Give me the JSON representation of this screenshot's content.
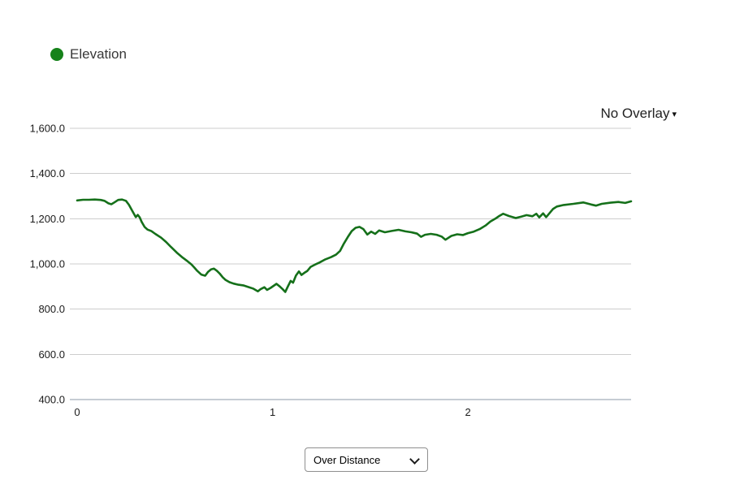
{
  "legend": {
    "label": "Elevation",
    "marker_color": "#16821a"
  },
  "overlay_dropdown": {
    "label": "No Overlay",
    "caret": "▾"
  },
  "bottom_select": {
    "options": [
      "Over Distance"
    ],
    "selected": "Over Distance"
  },
  "chart_data": {
    "type": "line",
    "title": "",
    "xlabel": "",
    "ylabel": "",
    "grid": true,
    "legend_position": "top-left",
    "xlim": [
      0,
      2.835
    ],
    "ylim": [
      400,
      1600
    ],
    "line_color": "#15701a",
    "grid_color": "#cdcdcd",
    "axis_color": "#8e99a8",
    "tick_color": "#1b1b1b",
    "yticks": [
      {
        "value": 1600,
        "label": "1,600.0"
      },
      {
        "value": 1400,
        "label": "1,400.0"
      },
      {
        "value": 1200,
        "label": "1,200.0"
      },
      {
        "value": 1000,
        "label": "1,000.0"
      },
      {
        "value": 800,
        "label": "800.0"
      },
      {
        "value": 600,
        "label": "600.0"
      },
      {
        "value": 400,
        "label": "400.0"
      }
    ],
    "xticks": [
      {
        "value": 0,
        "label": "0"
      },
      {
        "value": 1,
        "label": "1"
      },
      {
        "value": 2,
        "label": "2"
      }
    ],
    "series": [
      {
        "name": "Elevation",
        "points": [
          [
            0.0,
            1281
          ],
          [
            0.03,
            1284
          ],
          [
            0.06,
            1284
          ],
          [
            0.09,
            1285
          ],
          [
            0.12,
            1283
          ],
          [
            0.14,
            1279
          ],
          [
            0.16,
            1268
          ],
          [
            0.175,
            1264
          ],
          [
            0.19,
            1272
          ],
          [
            0.21,
            1283
          ],
          [
            0.23,
            1285
          ],
          [
            0.25,
            1279
          ],
          [
            0.265,
            1262
          ],
          [
            0.285,
            1230
          ],
          [
            0.3,
            1207
          ],
          [
            0.31,
            1217
          ],
          [
            0.32,
            1206
          ],
          [
            0.33,
            1186
          ],
          [
            0.345,
            1164
          ],
          [
            0.36,
            1152
          ],
          [
            0.38,
            1145
          ],
          [
            0.4,
            1133
          ],
          [
            0.43,
            1116
          ],
          [
            0.455,
            1097
          ],
          [
            0.48,
            1075
          ],
          [
            0.51,
            1050
          ],
          [
            0.54,
            1028
          ],
          [
            0.565,
            1012
          ],
          [
            0.585,
            998
          ],
          [
            0.6,
            984
          ],
          [
            0.615,
            969
          ],
          [
            0.635,
            953
          ],
          [
            0.655,
            948
          ],
          [
            0.67,
            965
          ],
          [
            0.685,
            976
          ],
          [
            0.7,
            979
          ],
          [
            0.715,
            970
          ],
          [
            0.73,
            957
          ],
          [
            0.745,
            941
          ],
          [
            0.76,
            929
          ],
          [
            0.78,
            919
          ],
          [
            0.8,
            913
          ],
          [
            0.825,
            908
          ],
          [
            0.85,
            905
          ],
          [
            0.88,
            897
          ],
          [
            0.9,
            891
          ],
          [
            0.925,
            879
          ],
          [
            0.94,
            889
          ],
          [
            0.958,
            897
          ],
          [
            0.972,
            885
          ],
          [
            0.99,
            894
          ],
          [
            1.005,
            903
          ],
          [
            1.02,
            912
          ],
          [
            1.037,
            900
          ],
          [
            1.052,
            888
          ],
          [
            1.065,
            876
          ],
          [
            1.08,
            903
          ],
          [
            1.093,
            925
          ],
          [
            1.105,
            917
          ],
          [
            1.12,
            949
          ],
          [
            1.135,
            967
          ],
          [
            1.148,
            951
          ],
          [
            1.163,
            961
          ],
          [
            1.178,
            969
          ],
          [
            1.195,
            987
          ],
          [
            1.215,
            996
          ],
          [
            1.24,
            1006
          ],
          [
            1.27,
            1020
          ],
          [
            1.3,
            1030
          ],
          [
            1.325,
            1041
          ],
          [
            1.345,
            1057
          ],
          [
            1.365,
            1090
          ],
          [
            1.385,
            1119
          ],
          [
            1.405,
            1145
          ],
          [
            1.425,
            1160
          ],
          [
            1.445,
            1164
          ],
          [
            1.465,
            1154
          ],
          [
            1.485,
            1130
          ],
          [
            1.505,
            1143
          ],
          [
            1.525,
            1133
          ],
          [
            1.545,
            1148
          ],
          [
            1.575,
            1140
          ],
          [
            1.61,
            1146
          ],
          [
            1.645,
            1151
          ],
          [
            1.68,
            1144
          ],
          [
            1.71,
            1140
          ],
          [
            1.74,
            1134
          ],
          [
            1.76,
            1120
          ],
          [
            1.78,
            1129
          ],
          [
            1.81,
            1133
          ],
          [
            1.84,
            1129
          ],
          [
            1.865,
            1121
          ],
          [
            1.885,
            1107
          ],
          [
            1.915,
            1124
          ],
          [
            1.945,
            1131
          ],
          [
            1.975,
            1128
          ],
          [
            2.0,
            1136
          ],
          [
            2.03,
            1143
          ],
          [
            2.06,
            1154
          ],
          [
            2.09,
            1170
          ],
          [
            2.115,
            1188
          ],
          [
            2.14,
            1200
          ],
          [
            2.16,
            1212
          ],
          [
            2.18,
            1222
          ],
          [
            2.21,
            1212
          ],
          [
            2.245,
            1203
          ],
          [
            2.275,
            1210
          ],
          [
            2.3,
            1216
          ],
          [
            2.33,
            1211
          ],
          [
            2.35,
            1222
          ],
          [
            2.365,
            1206
          ],
          [
            2.385,
            1224
          ],
          [
            2.4,
            1207
          ],
          [
            2.435,
            1243
          ],
          [
            2.455,
            1254
          ],
          [
            2.49,
            1261
          ],
          [
            2.54,
            1266
          ],
          [
            2.59,
            1272
          ],
          [
            2.63,
            1263
          ],
          [
            2.655,
            1258
          ],
          [
            2.685,
            1266
          ],
          [
            2.73,
            1271
          ],
          [
            2.77,
            1274
          ],
          [
            2.805,
            1270
          ],
          [
            2.835,
            1277
          ]
        ]
      }
    ]
  }
}
